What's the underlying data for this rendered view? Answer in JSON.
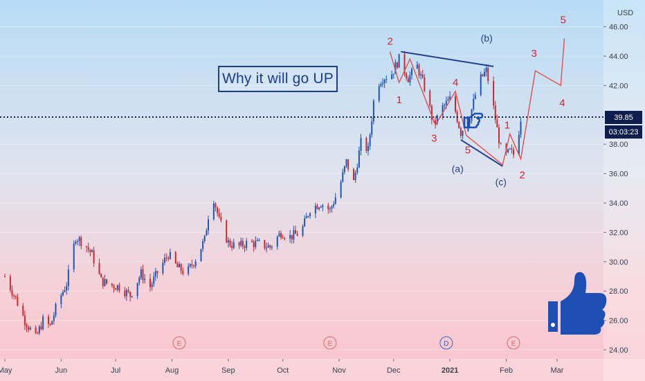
{
  "chart_data": {
    "type": "candlestick",
    "currency": "USD",
    "y_range": [
      23.5,
      47.5
    ],
    "y_ticks": [
      "46.00",
      "44.00",
      "42.00",
      "38.00",
      "36.00",
      "34.00",
      "32.00",
      "30.00",
      "28.00",
      "26.00",
      "24.00"
    ],
    "x_ticks": [
      "May",
      "Jun",
      "Jul",
      "Aug",
      "Sep",
      "Oct",
      "Nov",
      "Dec",
      "2021",
      "Feb",
      "Mar"
    ],
    "last_price": "39.85",
    "countdown": "03:03:23",
    "headline": "Why it will go UP",
    "events": [
      {
        "date": "2020-08-05",
        "label": "E"
      },
      {
        "date": "2020-10-27",
        "label": "E"
      },
      {
        "date": "2020-12-30",
        "label": "D"
      },
      {
        "date": "2021-02-05",
        "label": "E"
      }
    ],
    "wave_path": [
      {
        "date": "2020-11-29",
        "price": 44.3,
        "label": "2"
      },
      {
        "date": "2020-12-04",
        "price": 42.2,
        "label": "1"
      },
      {
        "date": "2020-12-10",
        "price": 43.8,
        "label": ""
      },
      {
        "date": "2020-12-24",
        "price": 39.3,
        "label": "3"
      },
      {
        "date": "2021-01-04",
        "price": 41.6,
        "label": "4"
      },
      {
        "date": "2021-01-10",
        "price": 38.6,
        "label": "5"
      },
      {
        "date": "2021-01-30",
        "price": 36.6,
        "label": ""
      },
      {
        "date": "2021-02-03",
        "price": 38.7,
        "label": "1"
      },
      {
        "date": "2021-02-09",
        "price": 37.0,
        "label": "2"
      },
      {
        "date": "2021-02-17",
        "price": 43.0,
        "label": "3"
      },
      {
        "date": "2021-03-03",
        "price": 42.0,
        "label": "4"
      },
      {
        "date": "2021-03-05",
        "price": 45.2,
        "label": "5"
      }
    ],
    "abc_labels": [
      {
        "date": "2021-01-21",
        "price": 45.0,
        "label": "(b)"
      },
      {
        "date": "2021-01-05",
        "price": 36.1,
        "label": "(a)"
      },
      {
        "date": "2021-01-29",
        "price": 35.2,
        "label": "(c)"
      }
    ],
    "trendlines": [
      {
        "from": {
          "date": "2020-12-05",
          "price": 44.3
        },
        "to": {
          "date": "2021-01-25",
          "price": 43.3
        }
      },
      {
        "from": {
          "date": "2021-01-07",
          "price": 38.3
        },
        "to": {
          "date": "2021-01-30",
          "price": 36.5
        }
      }
    ],
    "dotted_level": 39.85,
    "colors": {
      "up": "#1f55b0",
      "down": "#c8292f",
      "wave": "#e05050",
      "annotation": "#24408e",
      "tag": "#0d1d4d"
    },
    "price_path": [
      [
        "2020-05-01",
        29.0
      ],
      [
        "2020-05-07",
        27.5
      ],
      [
        "2020-05-12",
        26.0
      ],
      [
        "2020-05-18",
        24.8
      ],
      [
        "2020-05-22",
        26.0
      ],
      [
        "2020-05-26",
        25.6
      ],
      [
        "2020-05-30",
        27.2
      ],
      [
        "2020-06-04",
        28.5
      ],
      [
        "2020-06-09",
        31.7
      ],
      [
        "2020-06-14",
        31.2
      ],
      [
        "2020-06-18",
        30.5
      ],
      [
        "2020-06-23",
        28.7
      ],
      [
        "2020-06-28",
        28.4
      ],
      [
        "2020-07-03",
        28.3
      ],
      [
        "2020-07-09",
        27.7
      ],
      [
        "2020-07-15",
        29.2
      ],
      [
        "2020-07-20",
        28.3
      ],
      [
        "2020-07-25",
        29.5
      ],
      [
        "2020-07-30",
        30.5
      ],
      [
        "2020-08-04",
        29.6
      ],
      [
        "2020-08-09",
        29.2
      ],
      [
        "2020-08-14",
        30.2
      ],
      [
        "2020-08-19",
        31.5
      ],
      [
        "2020-08-23",
        34.8
      ],
      [
        "2020-08-27",
        32.8
      ],
      [
        "2020-09-01",
        31.3
      ],
      [
        "2020-09-06",
        31.0
      ],
      [
        "2020-09-12",
        31.3
      ],
      [
        "2020-09-18",
        31.2
      ],
      [
        "2020-09-24",
        31.0
      ],
      [
        "2020-09-30",
        32.0
      ],
      [
        "2020-10-05",
        31.7
      ],
      [
        "2020-10-11",
        32.0
      ],
      [
        "2020-10-16",
        33.6
      ],
      [
        "2020-10-22",
        34.0
      ],
      [
        "2020-10-27",
        33.5
      ],
      [
        "2020-11-01",
        35.0
      ],
      [
        "2020-11-05",
        36.8
      ],
      [
        "2020-11-09",
        35.4
      ],
      [
        "2020-11-13",
        38.1
      ],
      [
        "2020-11-17",
        37.6
      ],
      [
        "2020-11-21",
        42.0
      ],
      [
        "2020-11-25",
        42.5
      ],
      [
        "2020-11-30",
        42.8
      ],
      [
        "2020-12-04",
        43.8
      ],
      [
        "2020-12-09",
        42.5
      ],
      [
        "2020-12-14",
        43.3
      ],
      [
        "2020-12-19",
        41.5
      ],
      [
        "2020-12-23",
        39.3
      ],
      [
        "2020-12-28",
        40.5
      ],
      [
        "2021-01-02",
        41.2
      ],
      [
        "2021-01-07",
        38.8
      ],
      [
        "2021-01-12",
        39.9
      ],
      [
        "2021-01-17",
        42.3
      ],
      [
        "2021-01-21",
        43.0
      ],
      [
        "2021-01-24",
        41.2
      ],
      [
        "2021-01-27",
        39.0
      ],
      [
        "2021-01-30",
        37.0
      ],
      [
        "2021-02-03",
        37.5
      ],
      [
        "2021-02-06",
        37.2
      ],
      [
        "2021-02-09",
        39.8
      ]
    ]
  }
}
